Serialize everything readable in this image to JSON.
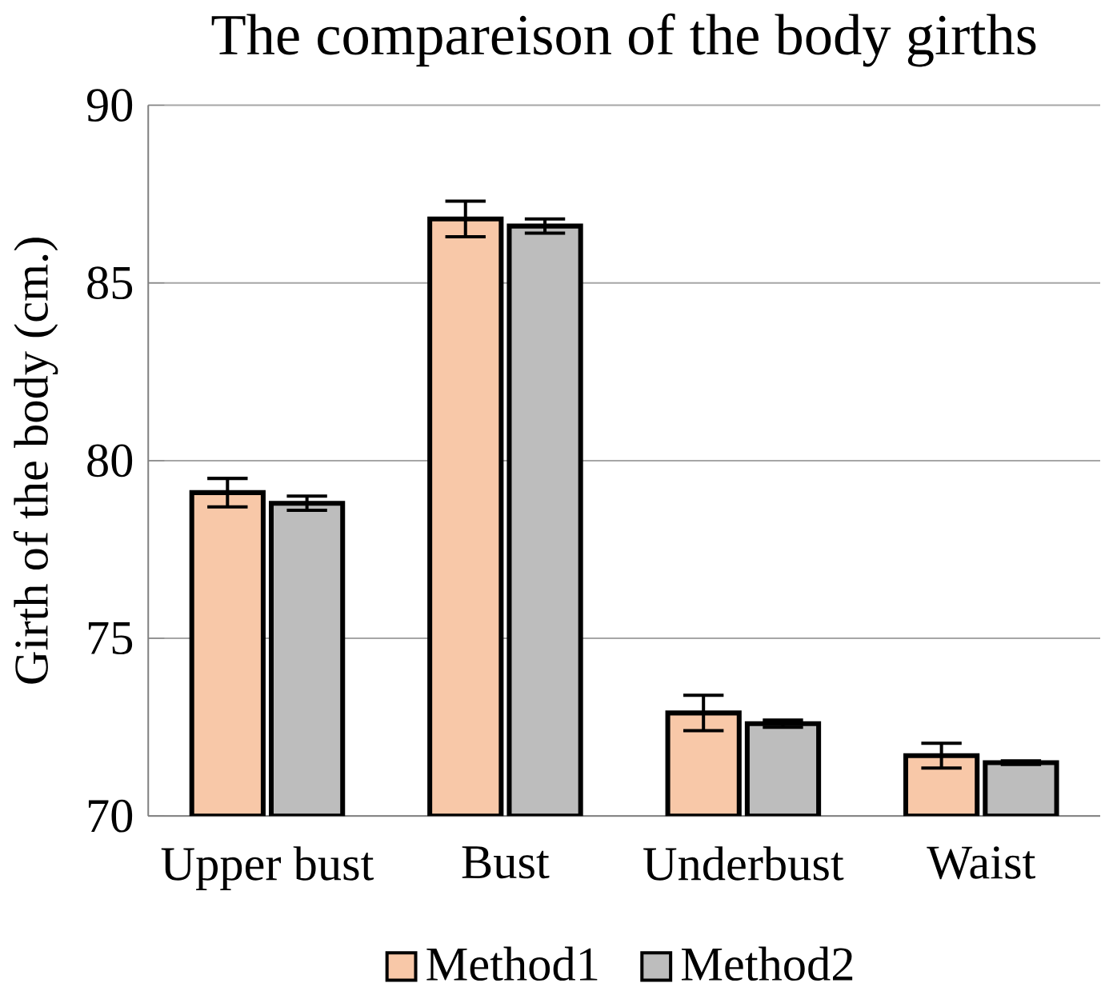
{
  "chart_data": {
    "type": "bar",
    "title": "The compareison of the body girths",
    "ylabel": "Girth of the body (cm.)",
    "categories": [
      "Upper bust",
      "Bust",
      "Underbust",
      "Waist"
    ],
    "series": [
      {
        "name": "Method1",
        "color": "#f8c8a8",
        "values": [
          79.1,
          86.8,
          72.9,
          71.7
        ],
        "errors": [
          0.4,
          0.5,
          0.5,
          0.35
        ]
      },
      {
        "name": "Method2",
        "color": "#bdbdbd",
        "values": [
          78.8,
          86.6,
          72.6,
          71.5
        ],
        "errors": [
          0.2,
          0.2,
          0.1,
          0.05
        ]
      }
    ],
    "ylim": [
      70,
      90
    ],
    "yticks": [
      70,
      75,
      80,
      85,
      90
    ],
    "grid": "y",
    "legend": "bottom"
  }
}
